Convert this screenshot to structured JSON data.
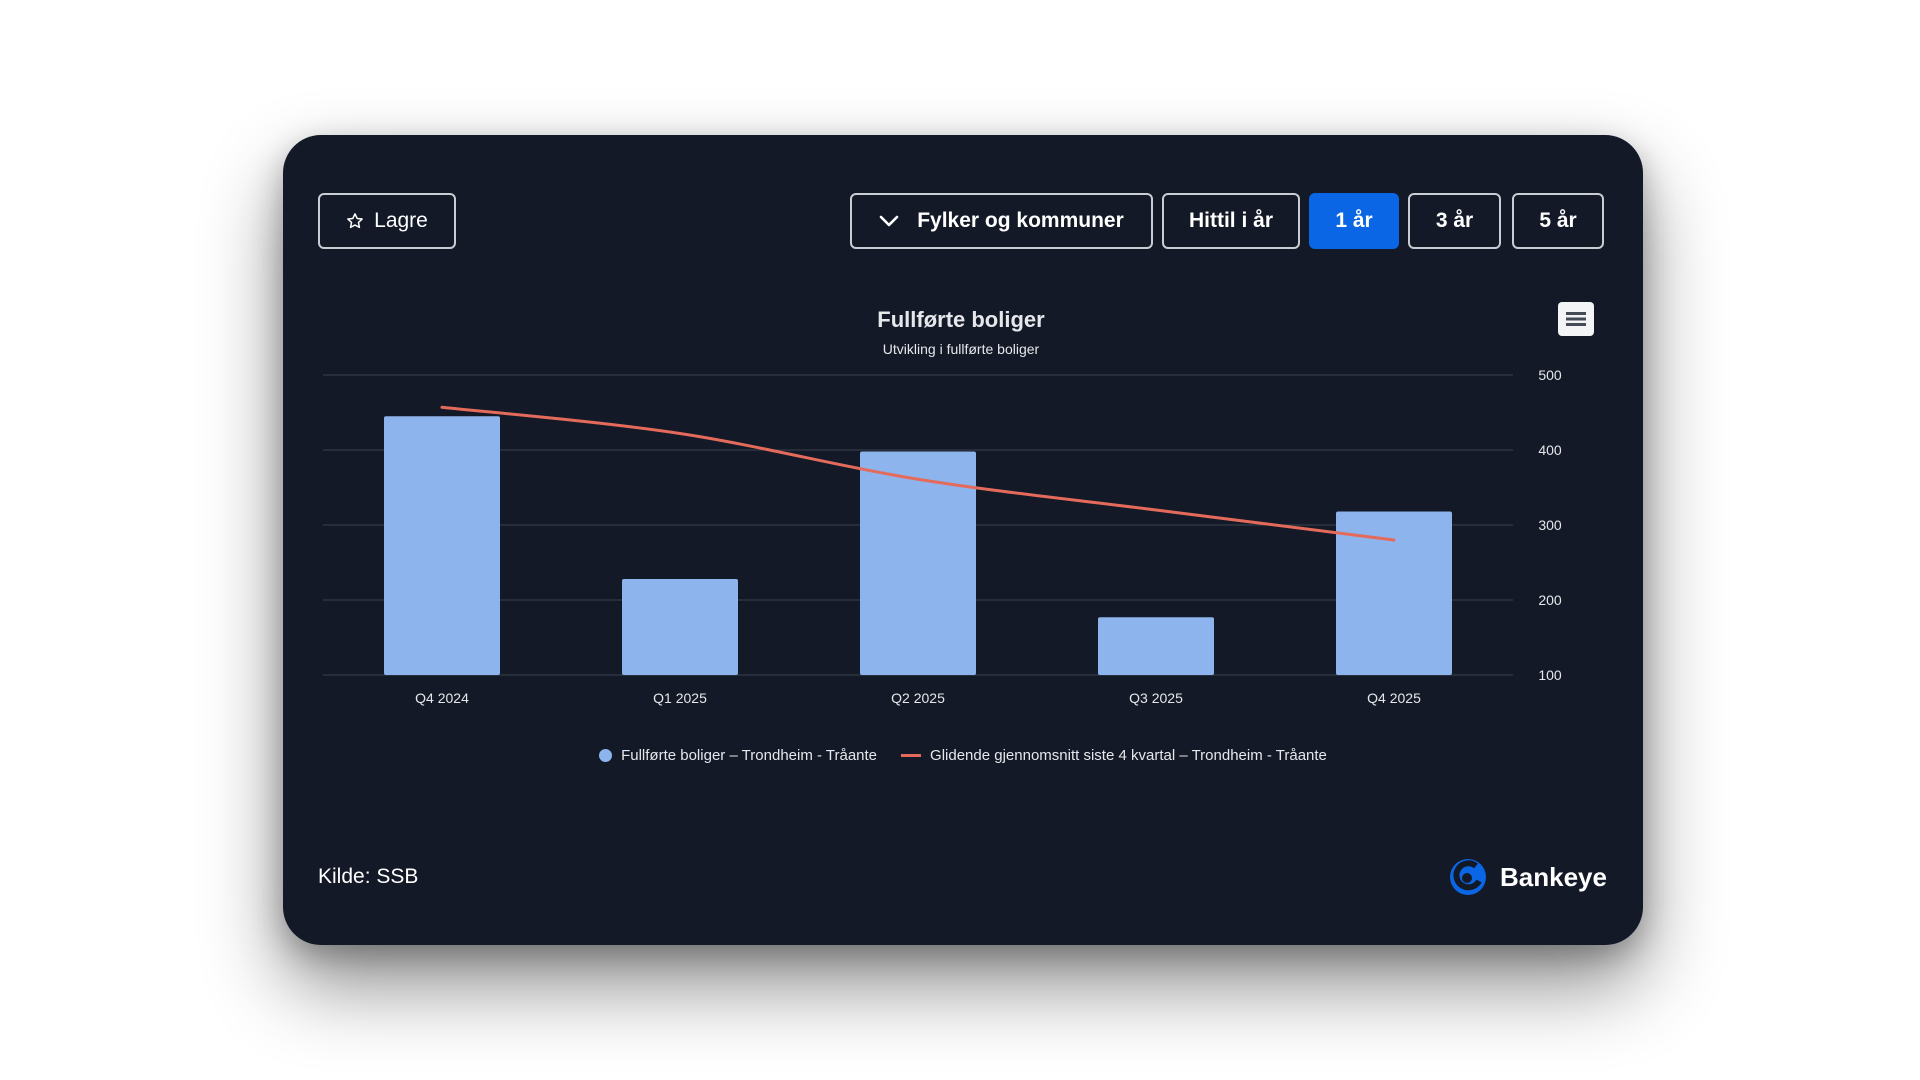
{
  "toolbar": {
    "save_label": "Lagre",
    "region_label": "Fylker og kommuner",
    "periods": [
      "Hittil i år",
      "1 år",
      "3 år",
      "5 år"
    ],
    "active_period": "1 år"
  },
  "footer": {
    "source": "Kilde: SSB",
    "brand": "Bankeye"
  },
  "colors": {
    "background": "#131926",
    "bar": "#8db4ec",
    "line": "#e46b5c",
    "accent": "#0a66e4"
  },
  "icons": {
    "save": "star-icon",
    "region": "chevron-down-icon",
    "menu": "hamburger-menu-icon",
    "brand": "bankeye-logo-icon"
  },
  "chart_data": {
    "type": "bar",
    "title": "Fullførte boliger",
    "subtitle": "Utvikling i fullførte boliger",
    "categories": [
      "Q4 2024",
      "Q1 2025",
      "Q2 2025",
      "Q3 2025",
      "Q4 2025"
    ],
    "series": [
      {
        "name": "Fullførte boliger – Trondheim - Tråante",
        "type": "bar",
        "values": [
          445,
          228,
          398,
          177,
          318
        ]
      },
      {
        "name": "Glidende gjennomsnitt siste 4 kvartal – Trondheim - Tråante",
        "type": "line",
        "values": [
          457,
          422,
          361,
          320,
          280
        ]
      }
    ],
    "yaxis": {
      "position": "right",
      "min": 100,
      "max": 500,
      "ticks": [
        100,
        200,
        300,
        400,
        500
      ]
    },
    "grid": true,
    "legend": "bottom-center"
  }
}
